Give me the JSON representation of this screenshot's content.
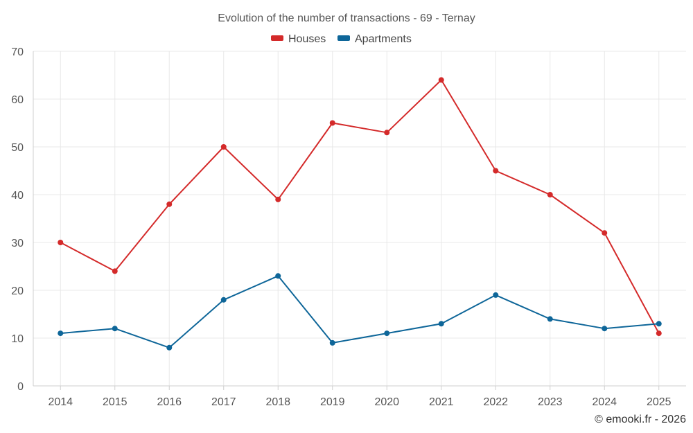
{
  "chart_data": {
    "type": "line",
    "title": "Evolution of the number of transactions - 69 - Ternay",
    "categories": [
      "2014",
      "2015",
      "2016",
      "2017",
      "2018",
      "2019",
      "2020",
      "2021",
      "2022",
      "2023",
      "2024",
      "2025"
    ],
    "series": [
      {
        "name": "Houses",
        "color": "#d42a2a",
        "values": [
          30,
          24,
          38,
          50,
          39,
          55,
          53,
          64,
          45,
          40,
          32,
          11
        ]
      },
      {
        "name": "Apartments",
        "color": "#0e6699",
        "values": [
          11,
          12,
          8,
          18,
          23,
          9,
          11,
          13,
          19,
          14,
          12,
          13
        ]
      }
    ],
    "xlabel": "",
    "ylabel": "",
    "ylim": [
      0,
      70
    ],
    "yticks": [
      0,
      10,
      20,
      30,
      40,
      50,
      60,
      70
    ],
    "grid": true,
    "legend_position": "top-center"
  },
  "footer": {
    "credit": "© emooki.fr - 2026"
  }
}
